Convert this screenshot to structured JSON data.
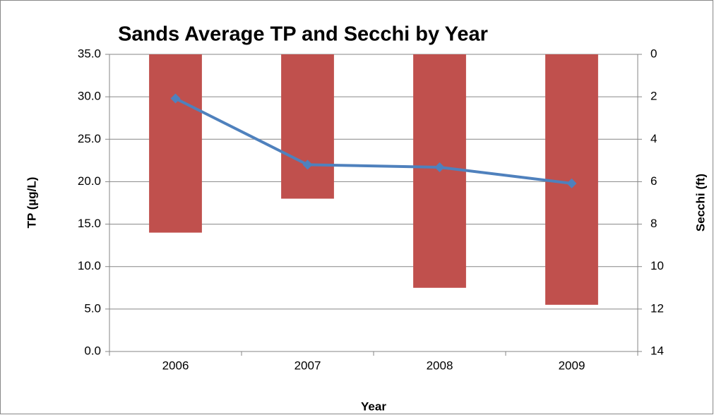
{
  "chart_data": {
    "type": "combo",
    "title": "Sands Average TP and Secchi by Year",
    "x_label": "Year",
    "y_label": "TP (µg/L)",
    "y2_label": "Secchi (ft)",
    "categories": [
      "2006",
      "2007",
      "2008",
      "2009"
    ],
    "series": [
      {
        "type": "bar",
        "axis": "y2",
        "color": "#c0504d",
        "values": [
          8.4,
          6.8,
          11.0,
          11.8
        ]
      },
      {
        "type": "line",
        "color": "#4f81bd",
        "values": [
          29.8,
          22.0,
          21.7,
          19.8
        ]
      }
    ],
    "ylim": [
      0,
      35
    ],
    "yticks": [
      {
        "value": 0,
        "label": "0.0"
      },
      {
        "value": 5,
        "label": "5.0"
      },
      {
        "value": 10,
        "label": "10.0"
      },
      {
        "value": 15,
        "label": "15.0"
      },
      {
        "value": 20,
        "label": "20.0"
      },
      {
        "value": 25,
        "label": "25.0"
      },
      {
        "value": 30,
        "label": "30.0"
      },
      {
        "value": 35,
        "label": "35.0"
      }
    ],
    "y2lim": [
      14,
      0
    ],
    "y2ticks": [
      0,
      2,
      4,
      6,
      8,
      10,
      12,
      14
    ],
    "grid": true
  }
}
